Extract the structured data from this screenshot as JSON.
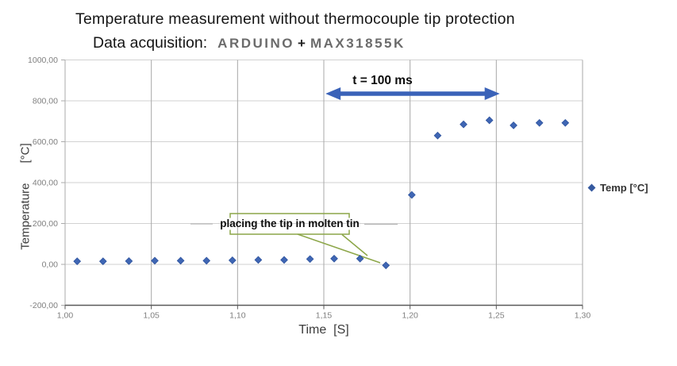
{
  "header": {
    "title": "Temperature measurement without thermocouple tip protection",
    "subtitle_label": "Data acquisition:",
    "device_1": "ARDUINO",
    "plus_sign": "+",
    "device_2": "MAX31855K"
  },
  "chart_data": {
    "type": "scatter",
    "title": "Temperature measurement without thermocouple tip protection",
    "subtitle": "Data acquisition: ARDUINO + MAX31855K",
    "xlabel": "Time  [S]",
    "ylabel": "Temperature      [°C]",
    "xlim": [
      1.0,
      1.3
    ],
    "ylim": [
      -200,
      1000
    ],
    "grid": true,
    "x_tick_values": [
      1.0,
      1.05,
      1.1,
      1.15,
      1.2,
      1.25,
      1.3
    ],
    "x_ticks": [
      "1,00",
      "1,05",
      "1,10",
      "1,15",
      "1,20",
      "1,25",
      "1,30"
    ],
    "y_tick_values": [
      1000,
      800,
      600,
      400,
      200,
      0,
      -200
    ],
    "y_ticks": [
      "1000,00",
      "800,00",
      "600,00",
      "400,00",
      "200,00",
      "0,00",
      "-200,00"
    ],
    "legend": {
      "label": "Temp [°C]",
      "position": "right",
      "marker": "diamond"
    },
    "series": [
      {
        "name": "Temp [°C]",
        "marker": "diamond",
        "points": [
          [
            1.007,
            15
          ],
          [
            1.022,
            15
          ],
          [
            1.037,
            16
          ],
          [
            1.052,
            18
          ],
          [
            1.067,
            18
          ],
          [
            1.082,
            18
          ],
          [
            1.097,
            20
          ],
          [
            1.112,
            22
          ],
          [
            1.127,
            22
          ],
          [
            1.142,
            26
          ],
          [
            1.156,
            28
          ],
          [
            1.171,
            28
          ],
          [
            1.186,
            -5
          ],
          [
            1.201,
            340
          ],
          [
            1.216,
            630
          ],
          [
            1.231,
            685
          ],
          [
            1.246,
            705
          ],
          [
            1.26,
            680
          ],
          [
            1.275,
            692
          ],
          [
            1.29,
            692
          ]
        ]
      }
    ],
    "annotations": {
      "arrow_label": "t = 100 ms",
      "arrow_span_s": [
        1.151,
        1.252
      ],
      "callout_label": "placing the tip in molten tin",
      "callout_target": [
        1.186,
        0
      ]
    }
  },
  "colors": {
    "marker_blue": "#3f66b4",
    "marker_edge": "#2f549e",
    "arrow_blue": "#3a62b8",
    "callout_green": "#8ca648",
    "dash_gray": "#b9b9b9",
    "grid_h": "#d2d2d2",
    "grid_v": "#a8a8a8",
    "axis_left": "#ababab",
    "axis_bottom": "#595959",
    "tick_text": "#7f7f7f"
  }
}
